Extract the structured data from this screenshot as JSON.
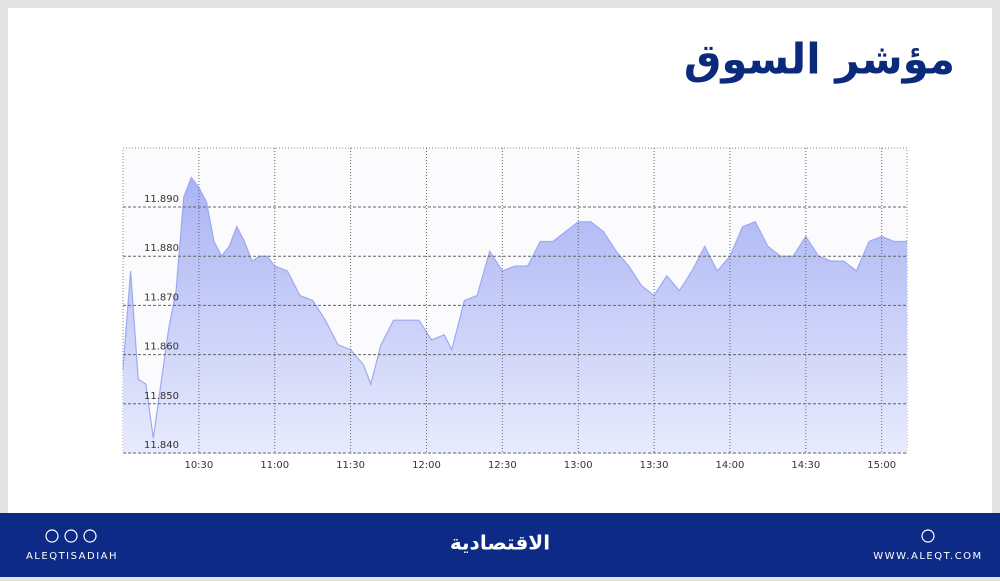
{
  "chart_data": {
    "type": "area",
    "title": "مؤشر السوق",
    "x": [
      "10:00",
      "10:03",
      "10:06",
      "10:09",
      "10:12",
      "10:15",
      "10:18",
      "10:21",
      "10:24",
      "10:27",
      "10:30",
      "10:33",
      "10:36",
      "10:39",
      "10:42",
      "10:45",
      "10:48",
      "10:51",
      "10:54",
      "10:57",
      "11:00",
      "11:05",
      "11:10",
      "11:15",
      "11:20",
      "11:25",
      "11:30",
      "11:35",
      "11:38",
      "11:42",
      "11:47",
      "11:52",
      "11:57",
      "12:02",
      "12:07",
      "12:10",
      "12:15",
      "12:20",
      "12:25",
      "12:30",
      "12:35",
      "12:40",
      "12:45",
      "12:50",
      "12:55",
      "13:00",
      "13:05",
      "13:10",
      "13:15",
      "13:20",
      "13:25",
      "13:30",
      "13:35",
      "13:40",
      "13:45",
      "13:50",
      "13:55",
      "14:00",
      "14:05",
      "14:10",
      "14:15",
      "14:20",
      "14:25",
      "14:30",
      "14:35",
      "14:40",
      "14:45",
      "14:50",
      "14:55",
      "15:00",
      "15:05",
      "15:10"
    ],
    "values": [
      11857,
      11877,
      11855,
      11854,
      11843,
      11854,
      11865,
      11873,
      11892,
      11896,
      11894,
      11891,
      11883,
      11880,
      11882,
      11886,
      11883,
      11879,
      11880,
      11880,
      11878,
      11877,
      11872,
      11871,
      11867,
      11862,
      11861,
      11858,
      11854,
      11862,
      11867,
      11867,
      11867,
      11863,
      11864,
      11861,
      11871,
      11872,
      11881,
      11877,
      11878,
      11878,
      11883,
      11883,
      11885,
      11887,
      11887,
      11885,
      11881,
      11878,
      11874,
      11872,
      11876,
      11873,
      11877,
      11882,
      11877,
      11880,
      11886,
      11887,
      11882,
      11880,
      11880,
      11884,
      11880,
      11879,
      11879,
      11877,
      11883,
      11884,
      11883,
      11883
    ],
    "color": "#9ea9f0",
    "xlim": [
      "10:00",
      "15:10"
    ],
    "xticks": [
      "10:30",
      "11:00",
      "11:30",
      "12:00",
      "12:30",
      "13:00",
      "13:30",
      "14:00",
      "14:30",
      "15:00"
    ],
    "ylim": [
      11840,
      11902
    ],
    "yticks": [
      {
        "value": 11840,
        "label": "11.840"
      },
      {
        "value": 11850,
        "label": "11.850"
      },
      {
        "value": 11860,
        "label": "11.860"
      },
      {
        "value": 11870,
        "label": "11.870"
      },
      {
        "value": 11880,
        "label": "11.880"
      },
      {
        "value": 11890,
        "label": "11.890"
      }
    ],
    "grid": true
  },
  "footer": {
    "handle": "ALEQTISADIAH",
    "logo": "الاقتصادية",
    "website": "WWW.ALEQT.COM"
  }
}
